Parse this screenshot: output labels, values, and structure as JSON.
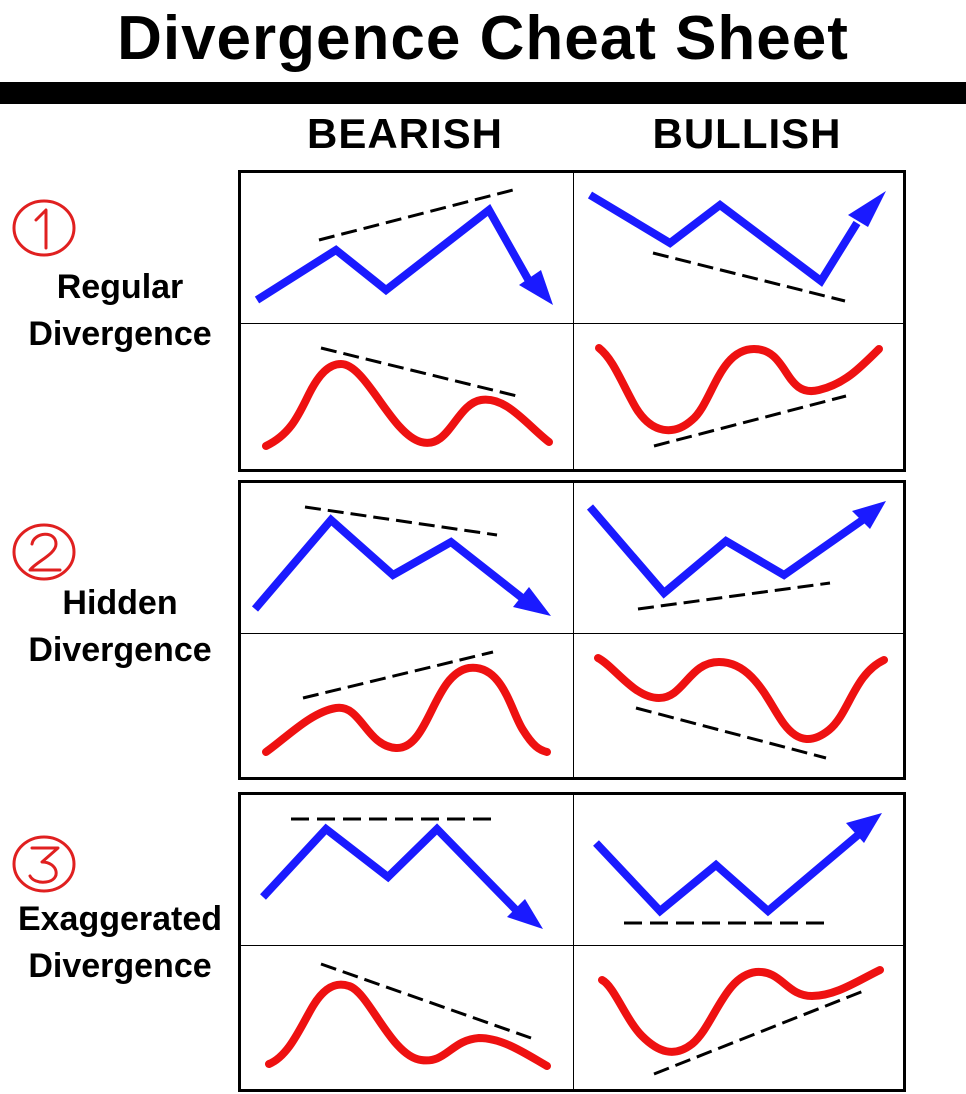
{
  "title": "Divergence Cheat Sheet",
  "columns": {
    "bearish": "BEARISH",
    "bullish": "BULLISH"
  },
  "rows": [
    {
      "number": "1",
      "line1": "Regular",
      "line2": "Divergence"
    },
    {
      "number": "2",
      "line1": "Hidden",
      "line2": "Divergence"
    },
    {
      "number": "3",
      "line1": "Exaggerated",
      "line2": "Divergence"
    }
  ],
  "colors": {
    "price": "#1a1aff",
    "indicator": "#ee1111",
    "trendline": "#000000",
    "number_circle": "#e02020"
  }
}
